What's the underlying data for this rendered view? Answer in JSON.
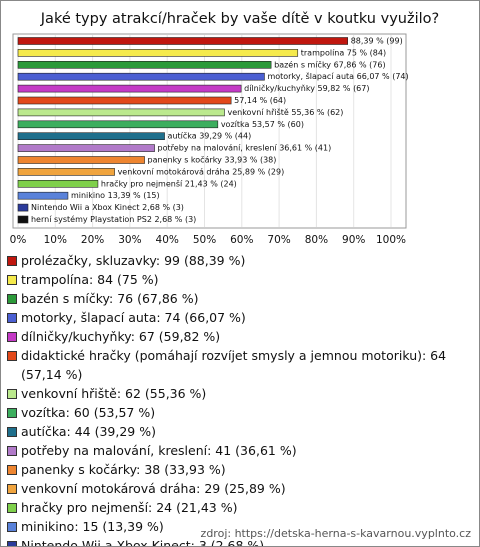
{
  "chart_data": {
    "type": "bar",
    "orientation": "horizontal",
    "title": "Jaké typy atrakcí/hraček by vaše dítě v koutku využilo?",
    "categories": [
      "prolézačky, skluzavky: 99 (88,39 %)",
      "trampolína: 84 (75 %)",
      "bazén s míčky: 76 (67,86 %)",
      "motorky, šlapací auta: 74 (66,07 %)",
      "dílničky/kuchyňky: 67 (59,82 %)",
      "didaktické hračky (pomáhají rozvíjet smysly a jemnou motoriku): 64 (57,14 %)",
      "venkovní hřiště: 62 (55,36 %)",
      "vozítka: 60 (53,57 %)",
      "autíčka: 44 (39,29 %)",
      "potřeby na malování, kreslení: 41 (36,61 %)",
      "panenky s kočárky: 38 (33,93 %)",
      "venkovní motokárová dráha: 29 (25,89 %)",
      "hračky pro nejmenší: 24 (21,43 %)",
      "minikino: 15 (13,39 %)",
      "Nintendo Wii a Xbox Kinect: 3 (2,68 %)",
      "herní systémy Playstation PS2: 3 (2,68 %)"
    ],
    "values": [
      88.39,
      75,
      67.86,
      66.07,
      59.82,
      57.14,
      55.36,
      53.57,
      39.29,
      36.61,
      33.93,
      25.89,
      21.43,
      13.39,
      2.68,
      2.68
    ],
    "value_labels": [
      "88,39 % (99)",
      "trampolína 75 % (84)",
      "bazén s míčky 67,86 % (76)",
      "motorky, šlapací auta 66,07 % (74)",
      "dílničky/kuchyňky 59,82 % (67)",
      "57,14 % (64)",
      "venkovní hřiště 55,36 % (62)",
      "vozítka 53,57 % (60)",
      "autíčka 39,29 % (44)",
      "potřeby na malování, kreslení 36,61 % (41)",
      "panenky s kočárky 33,93 % (38)",
      "venkovní motokárová dráha 25,89 % (29)",
      "hračky pro nejmenší 21,43 % (24)",
      "minikino 13,39 % (15)",
      "Nintendo Wii a Xbox Kinect 2,68 % (3)",
      "herní systémy Playstation PS2 2,68 % (3)"
    ],
    "colors": [
      "#c0170f",
      "#f5ea4c",
      "#2c9a3a",
      "#4b5fd2",
      "#c43ac6",
      "#e2481a",
      "#bbe98d",
      "#3cae5e",
      "#1f6f8c",
      "#b17ac9",
      "#ee8530",
      "#f0a43e",
      "#7fd04b",
      "#5a82da",
      "#2b3b9b",
      "#111111"
    ],
    "xlim": [
      0,
      100
    ],
    "xticks": [
      {
        "value": 0,
        "label": "0%"
      },
      {
        "value": 10,
        "label": "10%"
      },
      {
        "value": 20,
        "label": "20%"
      },
      {
        "value": 30,
        "label": "30%"
      },
      {
        "value": 40,
        "label": "40%"
      },
      {
        "value": 50,
        "label": "50%"
      },
      {
        "value": 60,
        "label": "60%"
      },
      {
        "value": 70,
        "label": "70%"
      },
      {
        "value": 80,
        "label": "80%"
      },
      {
        "value": 90,
        "label": "90%"
      },
      {
        "value": 100,
        "label": "100%"
      }
    ]
  },
  "source": "zdroj: https://detska-herna-s-kavarnou.vyplnto.cz"
}
